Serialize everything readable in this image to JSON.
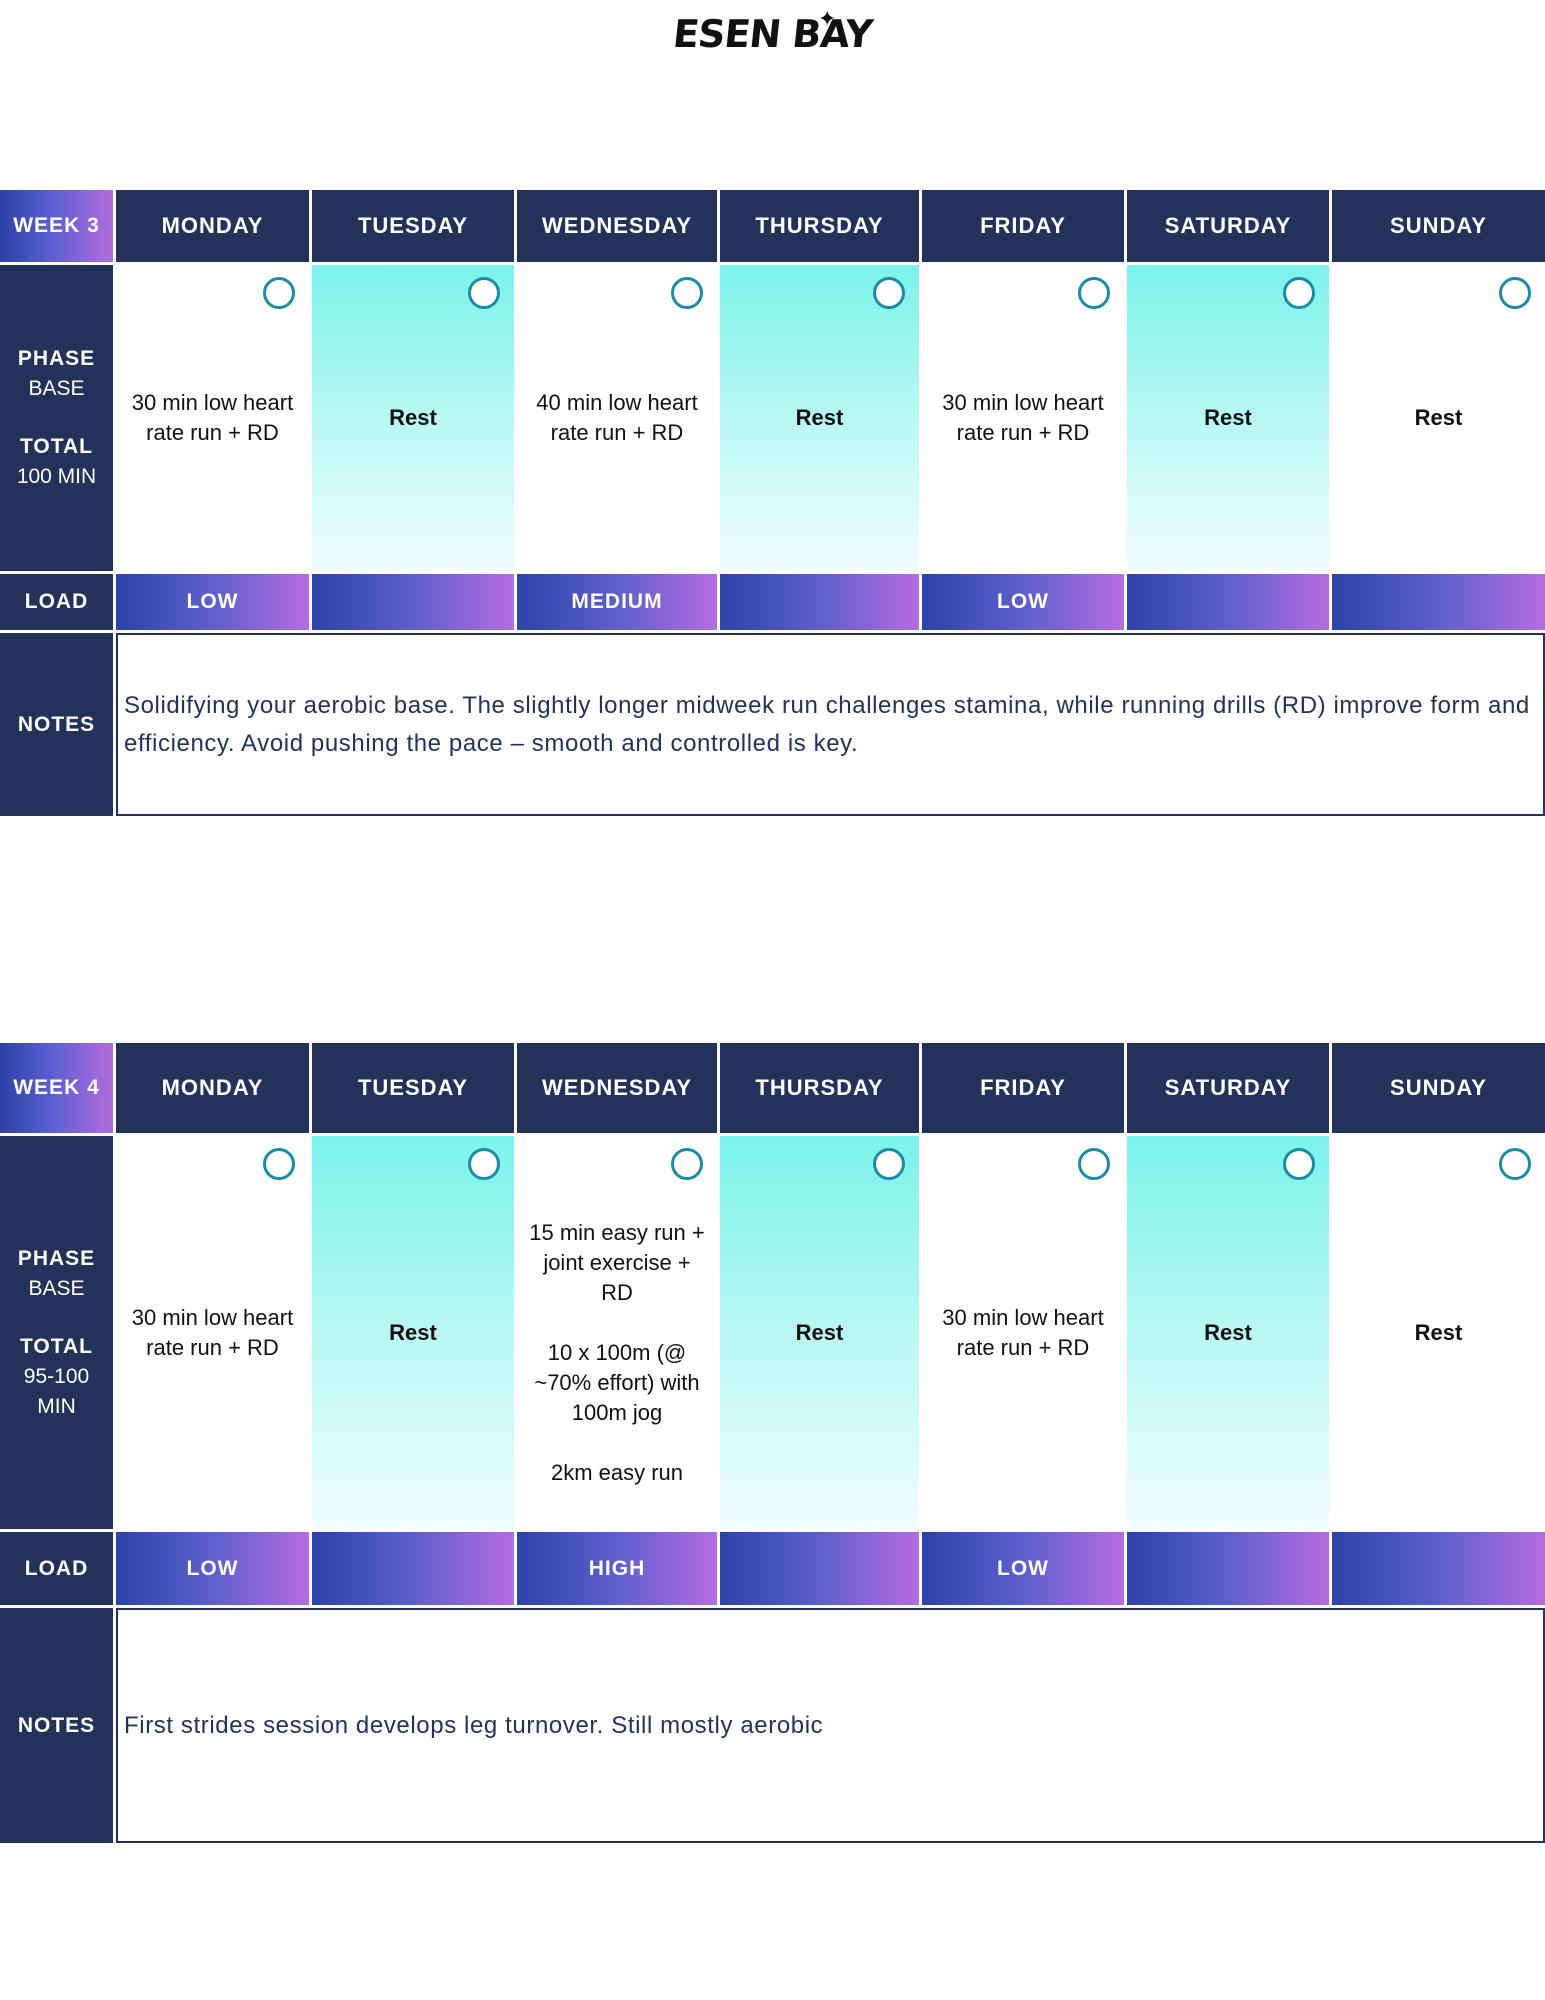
{
  "brand": {
    "name": "ESEN BAY"
  },
  "days": [
    "MONDAY",
    "TUESDAY",
    "WEDNESDAY",
    "THURSDAY",
    "FRIDAY",
    "SATURDAY",
    "SUNDAY"
  ],
  "weeks": [
    {
      "label": "WEEK 3",
      "phase_label": "PHASE",
      "phase_value": "BASE",
      "total_label": "TOTAL",
      "total_value": "100 MIN",
      "sessions": [
        "30 min low heart rate run + RD",
        "Rest",
        "40 min low heart rate run + RD",
        "Rest",
        "30 min low heart rate run + RD",
        "Rest",
        "Rest"
      ],
      "load_label": "LOAD",
      "loads": [
        "LOW",
        "",
        "MEDIUM",
        "",
        "LOW",
        "",
        ""
      ],
      "notes_label": "NOTES",
      "notes": "Solidifying your aerobic base. The slightly longer midweek run challenges stamina, while running drills (RD) improve form and efficiency. Avoid pushing the pace – smooth and controlled is key."
    },
    {
      "label": "WEEK 4",
      "phase_label": "PHASE",
      "phase_value": "BASE",
      "total_label": "TOTAL",
      "total_value": "95-100 MIN",
      "sessions": [
        "30 min low heart rate run + RD",
        "Rest",
        "15 min easy run + joint exercise + RD\n\n10 x 100m (@ ~70% effort) with 100m jog\n\n2km easy run",
        "Rest",
        "30 min low heart rate run + RD",
        "Rest",
        "Rest"
      ],
      "load_label": "LOAD",
      "loads": [
        "LOW",
        "",
        "HIGH",
        "",
        "LOW",
        "",
        ""
      ],
      "notes_label": "NOTES",
      "notes": "First strides session develops leg turnover. Still mostly aerobic"
    }
  ]
}
